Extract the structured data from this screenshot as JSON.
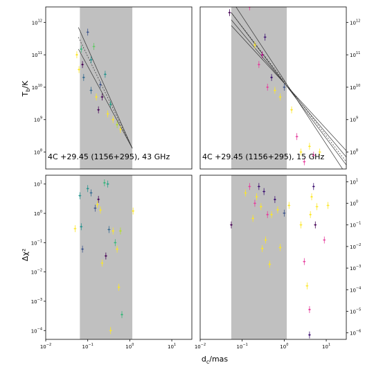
{
  "chart_data": [
    {
      "panel": "top-left",
      "type": "scatter",
      "annotation": "4C +29.45 (1156+295), 43 GHz",
      "ylabel_base": "T",
      "ylabel_sub": "b",
      "ylabel_unit": "/K",
      "xscale": "log",
      "yscale": "log",
      "xlim": [
        0.01,
        30
      ],
      "ylim": [
        30000000.0,
        3000000000000.0
      ],
      "yticks_labels": [
        "10",
        "10",
        "10",
        "10",
        "10"
      ],
      "yticks_exp": [
        "8",
        "9",
        "10",
        "11",
        "12"
      ],
      "yticks_values": [
        100000000.0,
        1000000000.0,
        10000000000.0,
        100000000000.0,
        1000000000000.0
      ],
      "shaded_x": [
        0.065,
        1.15
      ],
      "fit_lines": [
        {
          "x": [
            0.06,
            1.15
          ],
          "y": [
            700000000000.0,
            130000000.0
          ]
        },
        {
          "x": [
            0.06,
            1.15
          ],
          "y": [
            150000000000.0,
            130000000.0
          ]
        },
        {
          "x": [
            0.06,
            1.15
          ],
          "y": [
            350000000000.0,
            130000000.0
          ],
          "dashed": true
        }
      ],
      "points": [
        {
          "x": 0.055,
          "y": 100000000000.0,
          "c": "#fde725"
        },
        {
          "x": 0.062,
          "y": 35000000000.0,
          "c": "#fde725"
        },
        {
          "x": 0.07,
          "y": 150000000000.0,
          "c": "#35b779"
        },
        {
          "x": 0.075,
          "y": 50000000000.0,
          "c": "#440154"
        },
        {
          "x": 0.08,
          "y": 20000000000.0,
          "c": "#31688e"
        },
        {
          "x": 0.1,
          "y": 500000000000.0,
          "c": "#3b528b"
        },
        {
          "x": 0.12,
          "y": 70000000000.0,
          "c": "#21918c"
        },
        {
          "x": 0.12,
          "y": 8000000000.0,
          "c": "#31688e"
        },
        {
          "x": 0.14,
          "y": 180000000000.0,
          "c": "#5ec962"
        },
        {
          "x": 0.16,
          "y": 5000000000.0,
          "c": "#fde725"
        },
        {
          "x": 0.18,
          "y": 2000000000.0,
          "c": "#440154"
        },
        {
          "x": 0.2,
          "y": 12000000000.0,
          "c": "#3b528b"
        },
        {
          "x": 0.22,
          "y": 5000000000.0,
          "c": "#440154"
        },
        {
          "x": 0.26,
          "y": 25000000000.0,
          "c": "#21918c"
        },
        {
          "x": 0.3,
          "y": 1500000000.0,
          "c": "#fde725"
        },
        {
          "x": 0.35,
          "y": 3000000000.0,
          "c": "#1fa187"
        },
        {
          "x": 0.4,
          "y": 1000000000.0,
          "c": "#fde725"
        },
        {
          "x": 0.5,
          "y": 700000000.0,
          "c": "#b5de2b"
        },
        {
          "x": 0.6,
          "y": 500000000.0,
          "c": "#fde725"
        }
      ]
    },
    {
      "panel": "top-right",
      "type": "scatter",
      "annotation": "4C +29.45 (1156+295), 15 GHz",
      "xscale": "log",
      "yscale": "log",
      "xlim": [
        0.01,
        30
      ],
      "ylim": [
        30000000.0,
        3000000000000.0
      ],
      "yticks_labels": [
        "10",
        "10",
        "10",
        "10",
        "10"
      ],
      "yticks_exp": [
        "8",
        "9",
        "10",
        "11",
        "12"
      ],
      "yticks_values": [
        100000000.0,
        1000000000.0,
        10000000000.0,
        100000000000.0,
        1000000000000.0
      ],
      "shaded_x": [
        0.055,
        1.15
      ],
      "fit_lines": [
        {
          "x": [
            0.055,
            30
          ],
          "y": [
            5000000000000.0,
            20000000.0
          ]
        },
        {
          "x": [
            0.055,
            30
          ],
          "y": [
            2000000000000.0,
            40000000.0
          ]
        },
        {
          "x": [
            0.055,
            30
          ],
          "y": [
            1200000000000.0,
            70000000.0
          ]
        },
        {
          "x": [
            0.055,
            30
          ],
          "y": [
            800000000000.0,
            110000000.0
          ]
        },
        {
          "x": [
            0.055,
            30
          ],
          "y": [
            2000000000000.0,
            50000000.0
          ],
          "dashed": true
        }
      ],
      "points": [
        {
          "x": 0.05,
          "y": 2000000000000.0,
          "c": "#440154"
        },
        {
          "x": 0.15,
          "y": 3000000000000.0,
          "c": "#e53d9c"
        },
        {
          "x": 0.2,
          "y": 200000000000.0,
          "c": "#fde725"
        },
        {
          "x": 0.25,
          "y": 50000000000.0,
          "c": "#e53d9c"
        },
        {
          "x": 0.3,
          "y": 100000000000.0,
          "c": "#b30086"
        },
        {
          "x": 0.35,
          "y": 350000000000.0,
          "c": "#3b0f70"
        },
        {
          "x": 0.4,
          "y": 10000000000.0,
          "c": "#e53d9c"
        },
        {
          "x": 0.5,
          "y": 20000000000.0,
          "c": "#3b0f70"
        },
        {
          "x": 0.6,
          "y": 8000000000.0,
          "c": "#fde725"
        },
        {
          "x": 0.8,
          "y": 5000000000.0,
          "c": "#fde725"
        },
        {
          "x": 1.0,
          "y": 10000000000.0,
          "c": "#3b528b"
        },
        {
          "x": 1.5,
          "y": 2000000000.0,
          "c": "#fde725"
        },
        {
          "x": 2.0,
          "y": 300000000.0,
          "c": "#e53d9c"
        },
        {
          "x": 2.5,
          "y": 100000000.0,
          "c": "#fde725"
        },
        {
          "x": 3.0,
          "y": 50000000.0,
          "c": "#e53d9c"
        },
        {
          "x": 4.0,
          "y": 150000000.0,
          "c": "#fde725"
        },
        {
          "x": 5.0,
          "y": 80000000.0,
          "c": "#e53d9c"
        },
        {
          "x": 7.0,
          "y": 100000000.0,
          "c": "#fde725"
        }
      ]
    },
    {
      "panel": "bottom-left",
      "type": "scatter",
      "ylabel": "Δχ²",
      "xscale": "log",
      "yscale": "log",
      "xlim": [
        0.01,
        30
      ],
      "ylim": [
        5e-05,
        20
      ],
      "yticks_labels": [
        "10",
        "10",
        "10",
        "10",
        "10",
        "10"
      ],
      "yticks_exp": [
        "−4",
        "−3",
        "−2",
        "−1",
        "0",
        "1"
      ],
      "yticks_values": [
        0.0001,
        0.001,
        0.01,
        0.1,
        1,
        10
      ],
      "xticks_labels": [
        "10",
        "10",
        "10",
        "10",
        "10"
      ],
      "xticks_exp": [
        "−2",
        "−1",
        "0",
        "1",
        ""
      ],
      "xticks_values": [
        0.01,
        0.1,
        1,
        10
      ],
      "shaded_x": [
        0.065,
        1.15
      ],
      "points": [
        {
          "x": 0.05,
          "y": 0.3,
          "c": "#fde725"
        },
        {
          "x": 0.065,
          "y": 4,
          "c": "#21918c"
        },
        {
          "x": 0.07,
          "y": 0.35,
          "c": "#21918c"
        },
        {
          "x": 0.075,
          "y": 0.06,
          "c": "#3b528b"
        },
        {
          "x": 0.1,
          "y": 7,
          "c": "#21918c"
        },
        {
          "x": 0.12,
          "y": 5,
          "c": "#31688e"
        },
        {
          "x": 0.15,
          "y": 1.5,
          "c": "#3b528b"
        },
        {
          "x": 0.17,
          "y": 2,
          "c": "#fde725"
        },
        {
          "x": 0.18,
          "y": 3,
          "c": "#440154"
        },
        {
          "x": 0.2,
          "y": 1.3,
          "c": "#fde725"
        },
        {
          "x": 0.22,
          "y": 0.02,
          "c": "#fde725"
        },
        {
          "x": 0.25,
          "y": 11,
          "c": "#35b779"
        },
        {
          "x": 0.27,
          "y": 0.035,
          "c": "#440154"
        },
        {
          "x": 0.3,
          "y": 10,
          "c": "#1fa187"
        },
        {
          "x": 0.32,
          "y": 0.28,
          "c": "#31688e"
        },
        {
          "x": 0.4,
          "y": 0.25,
          "c": "#fde725"
        },
        {
          "x": 0.45,
          "y": 0.1,
          "c": "#35b779"
        },
        {
          "x": 0.5,
          "y": 0.06,
          "c": "#fde725"
        },
        {
          "x": 0.55,
          "y": 0.003,
          "c": "#fde725"
        },
        {
          "x": 0.6,
          "y": 0.25,
          "c": "#b5de2b"
        },
        {
          "x": 0.65,
          "y": 0.00035,
          "c": "#35b779"
        },
        {
          "x": 1.2,
          "y": 1.2,
          "c": "#fde725"
        },
        {
          "x": 0.35,
          "y": 0.0001,
          "c": "#fde725"
        }
      ]
    },
    {
      "panel": "bottom-right",
      "type": "scatter",
      "xscale": "log",
      "yscale": "log",
      "xlim": [
        0.01,
        30
      ],
      "ylim": [
        5e-07,
        20
      ],
      "yticks_labels": [
        "10",
        "10",
        "10",
        "10",
        "10",
        "10",
        "10",
        "10"
      ],
      "yticks_exp": [
        "−6",
        "−5",
        "−4",
        "−3",
        "−2",
        "−1",
        "0",
        "1"
      ],
      "yticks_values": [
        1e-06,
        1e-05,
        0.0001,
        0.001,
        0.01,
        0.1,
        1,
        10
      ],
      "xticks_labels": [
        "10",
        "10",
        "10",
        "10"
      ],
      "xticks_exp": [
        "−2",
        "−1",
        "0",
        "1"
      ],
      "xticks_values": [
        0.01,
        0.1,
        1,
        10
      ],
      "shaded_x": [
        0.055,
        1.15
      ],
      "points": [
        {
          "x": 0.055,
          "y": 0.1,
          "c": "#440154"
        },
        {
          "x": 0.12,
          "y": 3,
          "c": "#fde725"
        },
        {
          "x": 0.15,
          "y": 6,
          "c": "#e53d9c"
        },
        {
          "x": 0.18,
          "y": 0.2,
          "c": "#fde725"
        },
        {
          "x": 0.2,
          "y": 1,
          "c": "#e53d9c"
        },
        {
          "x": 0.22,
          "y": 2,
          "c": "#fde725"
        },
        {
          "x": 0.25,
          "y": 6,
          "c": "#3b0f70"
        },
        {
          "x": 0.28,
          "y": 0.7,
          "c": "#fde725"
        },
        {
          "x": 0.3,
          "y": 0.008,
          "c": "#fde725"
        },
        {
          "x": 0.33,
          "y": 3.5,
          "c": "#3b0f70"
        },
        {
          "x": 0.36,
          "y": 0.02,
          "c": "#fde725"
        },
        {
          "x": 0.4,
          "y": 0.3,
          "c": "#e53d9c"
        },
        {
          "x": 0.45,
          "y": 0.0015,
          "c": "#fde725"
        },
        {
          "x": 0.5,
          "y": 0.3,
          "c": "#fde725"
        },
        {
          "x": 0.6,
          "y": 1.5,
          "c": "#3b0f70"
        },
        {
          "x": 0.7,
          "y": 0.5,
          "c": "#fde725"
        },
        {
          "x": 0.8,
          "y": 0.009,
          "c": "#fde725"
        },
        {
          "x": 1.0,
          "y": 0.35,
          "c": "#3b528b"
        },
        {
          "x": 1.3,
          "y": 0.8,
          "c": "#fde725"
        },
        {
          "x": 2.5,
          "y": 0.1,
          "c": "#fde725"
        },
        {
          "x": 3.0,
          "y": 0.002,
          "c": "#e53d9c"
        },
        {
          "x": 3.5,
          "y": 0.00015,
          "c": "#fde725"
        },
        {
          "x": 4.0,
          "y": 1.2e-05,
          "c": "#e53d9c"
        },
        {
          "x": 4.0,
          "y": 8e-07,
          "c": "#3b0f70"
        },
        {
          "x": 4.2,
          "y": 0.3,
          "c": "#fde725"
        },
        {
          "x": 4.5,
          "y": 2,
          "c": "#fde725"
        },
        {
          "x": 5.0,
          "y": 6,
          "c": "#3b0f70"
        },
        {
          "x": 5.5,
          "y": 0.1,
          "c": "#440154"
        },
        {
          "x": 6.0,
          "y": 0.7,
          "c": "#fde725"
        },
        {
          "x": 9.0,
          "y": 0.02,
          "c": "#e53d9c"
        },
        {
          "x": 11.0,
          "y": 0.8,
          "c": "#fde725"
        }
      ]
    }
  ],
  "xlabel_base": "d",
  "xlabel_sub": "c",
  "xlabel_unit": "/mas",
  "colors": {
    "shade": "#c0c0c0",
    "axis": "#000000"
  }
}
